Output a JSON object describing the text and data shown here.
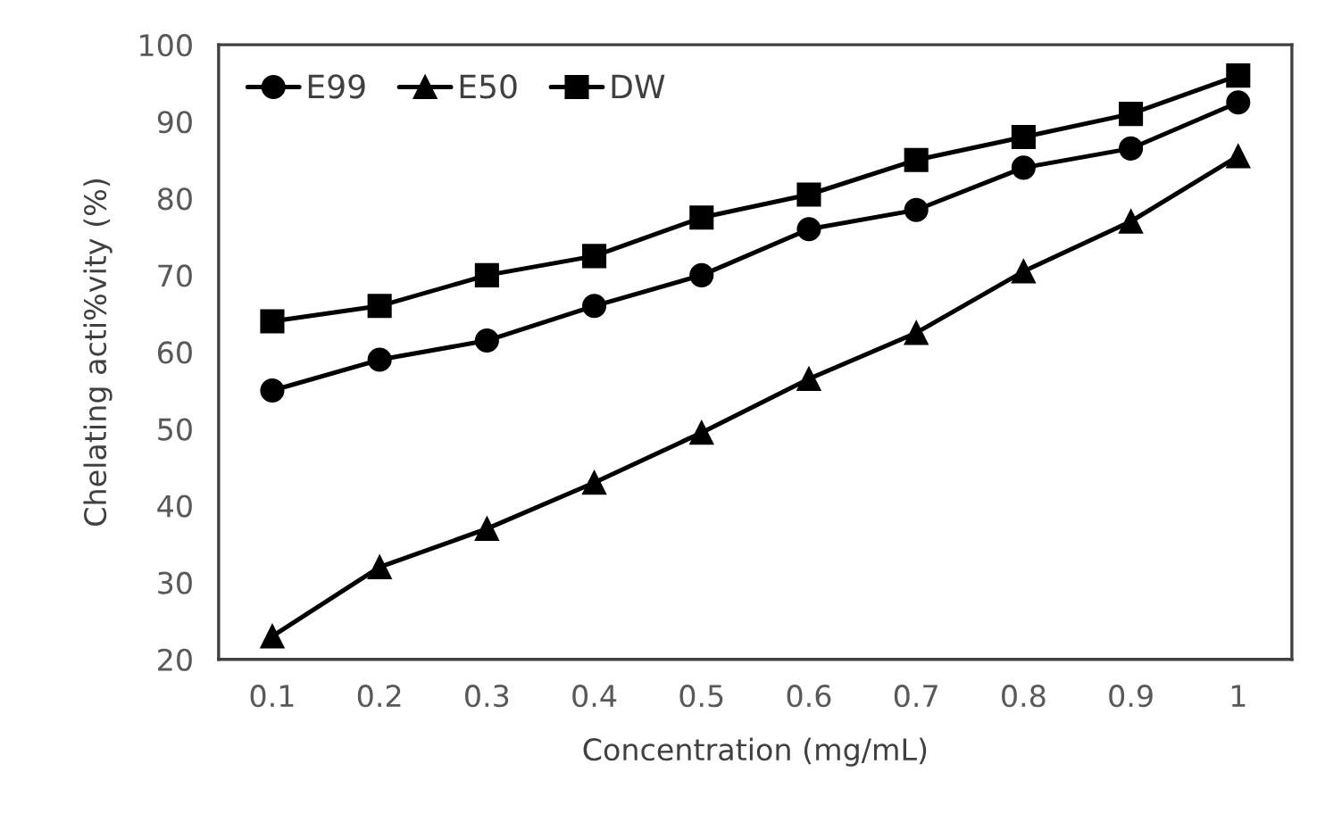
{
  "chart_data": {
    "type": "line",
    "xlabel": "Concentration (mg/mL)",
    "ylabel": "Chelating acti%vity (%)",
    "categories": [
      "0.1",
      "0.2",
      "0.3",
      "0.4",
      "0.5",
      "0.6",
      "0.7",
      "0.8",
      "0.9",
      "1"
    ],
    "series": [
      {
        "name": "E99",
        "color": "#000000",
        "marker": "circle",
        "values": [
          55,
          59,
          61.5,
          66,
          70,
          76,
          78.5,
          84,
          86.5,
          92.5
        ]
      },
      {
        "name": "E50",
        "color": "#000000",
        "marker": "triangle",
        "values": [
          23,
          32,
          37,
          43,
          49.5,
          56.5,
          62.5,
          70.5,
          77,
          85.5
        ]
      },
      {
        "name": "DW",
        "color": "#000000",
        "marker": "square",
        "values": [
          64,
          66,
          70,
          72.5,
          77.5,
          80.5,
          85,
          88,
          91,
          96
        ]
      }
    ],
    "ylim": [
      20,
      100
    ],
    "yticks": [
      20,
      30,
      40,
      50,
      60,
      70,
      80,
      90,
      100
    ],
    "grid": false,
    "legend": "top left",
    "line_style": "solid"
  }
}
